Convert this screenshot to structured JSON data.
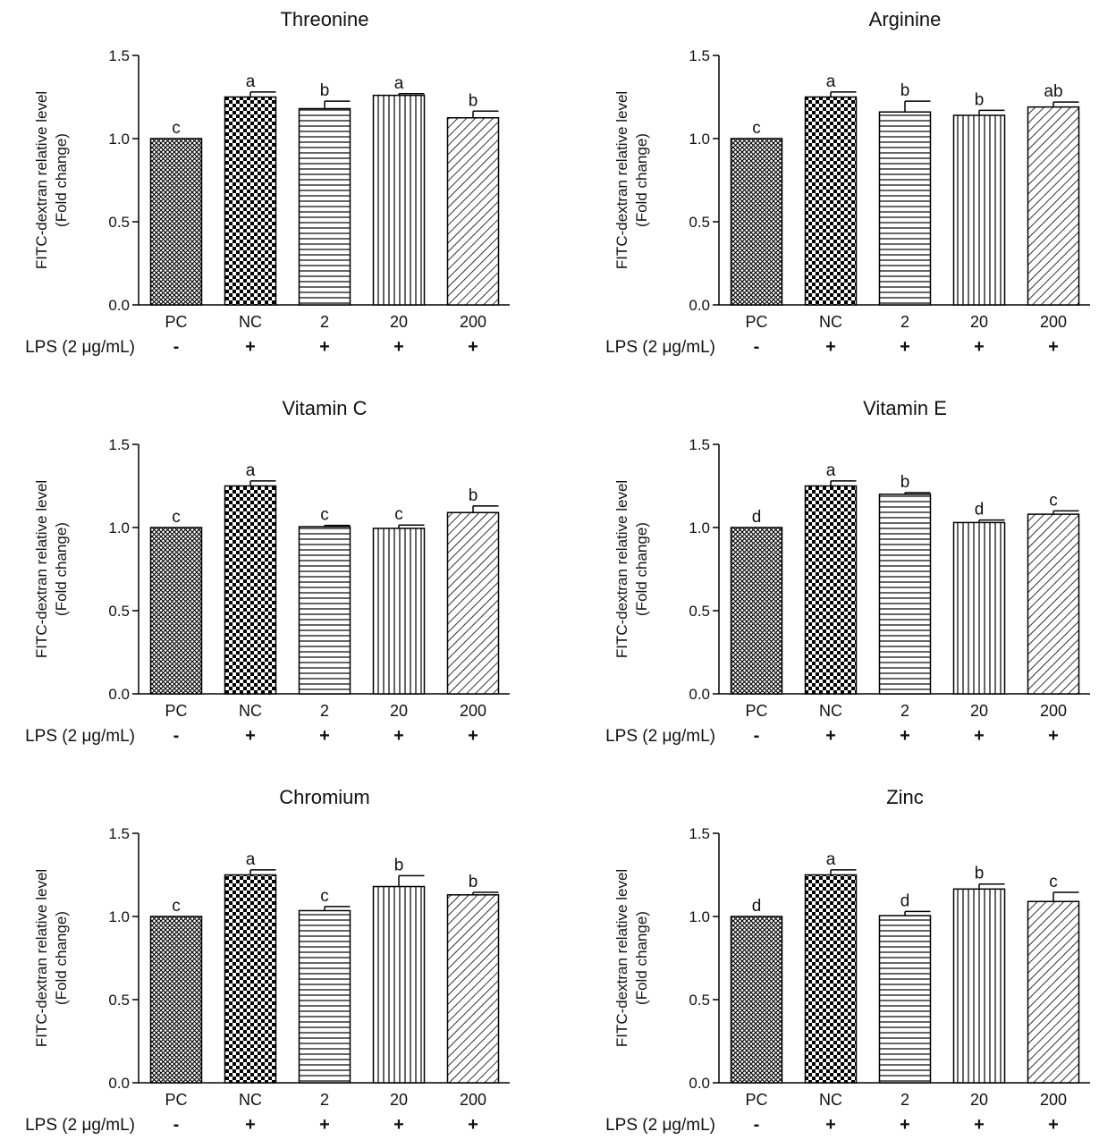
{
  "lps_label": "LPS (2 μg/mL)",
  "common": {
    "categories": [
      "PC",
      "NC",
      "2",
      "20",
      "200"
    ],
    "lps_signs": [
      "-",
      "+",
      "+",
      "+",
      "+"
    ],
    "ylabel_line1": "FITC-dextran relative level",
    "ylabel_line2": "(Fold change)",
    "yticks": [
      "0.0",
      "0.5",
      "1.0",
      "1.5"
    ]
  },
  "chart_data": [
    {
      "type": "bar",
      "title": "Threonine",
      "categories": [
        "PC",
        "NC",
        "2",
        "20",
        "200"
      ],
      "values": [
        1.0,
        1.25,
        1.18,
        1.26,
        1.125
      ],
      "errors": [
        0,
        0.03,
        0.045,
        0.01,
        0.04
      ],
      "letters": [
        "c",
        "a",
        "b",
        "a",
        "b"
      ],
      "ylim": [
        0,
        1.5
      ],
      "ylabel": "FITC-dextran relative level (Fold change)"
    },
    {
      "type": "bar",
      "title": "Arginine",
      "categories": [
        "PC",
        "NC",
        "2",
        "20",
        "200"
      ],
      "values": [
        1.0,
        1.25,
        1.16,
        1.14,
        1.19
      ],
      "errors": [
        0,
        0.03,
        0.065,
        0.03,
        0.03
      ],
      "letters": [
        "c",
        "a",
        "b",
        "b",
        "ab"
      ],
      "ylim": [
        0,
        1.5
      ],
      "ylabel": "FITC-dextran relative level (Fold change)"
    },
    {
      "type": "bar",
      "title": "Vitamin C",
      "categories": [
        "PC",
        "NC",
        "2",
        "20",
        "200"
      ],
      "values": [
        1.0,
        1.25,
        1.005,
        0.995,
        1.09
      ],
      "errors": [
        0,
        0.03,
        0.008,
        0.02,
        0.04
      ],
      "letters": [
        "c",
        "a",
        "c",
        "c",
        "b"
      ],
      "ylim": [
        0,
        1.5
      ],
      "ylabel": "FITC-dextran relative level (Fold change)"
    },
    {
      "type": "bar",
      "title": "Vitamin E",
      "categories": [
        "PC",
        "NC",
        "2",
        "20",
        "200"
      ],
      "values": [
        1.0,
        1.25,
        1.2,
        1.03,
        1.08
      ],
      "errors": [
        0,
        0.03,
        0.01,
        0.015,
        0.02
      ],
      "letters": [
        "d",
        "a",
        "b",
        "d",
        "c"
      ],
      "ylim": [
        0,
        1.5
      ],
      "ylabel": "FITC-dextran relative level (Fold change)"
    },
    {
      "type": "bar",
      "title": "Chromium",
      "categories": [
        "PC",
        "NC",
        "2",
        "20",
        "200"
      ],
      "values": [
        1.0,
        1.25,
        1.035,
        1.18,
        1.13
      ],
      "errors": [
        0,
        0.03,
        0.025,
        0.065,
        0.015
      ],
      "letters": [
        "c",
        "a",
        "c",
        "b",
        "b"
      ],
      "ylim": [
        0,
        1.5
      ],
      "ylabel": "FITC-dextran relative level (Fold change)"
    },
    {
      "type": "bar",
      "title": "Zinc",
      "categories": [
        "PC",
        "NC",
        "2",
        "20",
        "200"
      ],
      "values": [
        1.0,
        1.25,
        1.005,
        1.165,
        1.09
      ],
      "errors": [
        0,
        0.03,
        0.025,
        0.03,
        0.055
      ],
      "letters": [
        "d",
        "a",
        "d",
        "b",
        "c"
      ],
      "ylim": [
        0,
        1.5
      ],
      "ylabel": "FITC-dextran relative level (Fold change)"
    }
  ]
}
